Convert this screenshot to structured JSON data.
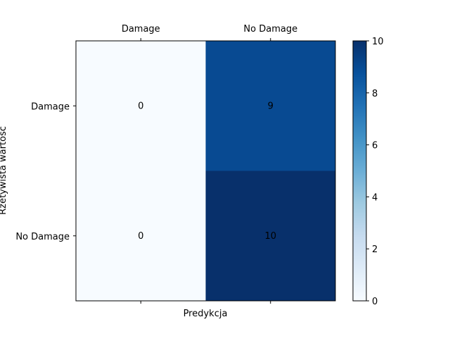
{
  "chart_data": {
    "type": "heatmap",
    "title": "",
    "xlabel": "Predykcja",
    "ylabel": "Rzetywista wartość",
    "x_categories": [
      "Damage",
      "No Damage"
    ],
    "y_categories": [
      "Damage",
      "No Damage"
    ],
    "values": [
      [
        0,
        9
      ],
      [
        0,
        10
      ]
    ],
    "colormap": "Blues",
    "colorbar": {
      "min": 0,
      "max": 10,
      "ticks": [
        "0",
        "2",
        "4",
        "6",
        "8",
        "10"
      ]
    },
    "grid": false
  },
  "colors": {
    "low": "#f7fbff",
    "high": "#08306b",
    "text": "#000000"
  }
}
